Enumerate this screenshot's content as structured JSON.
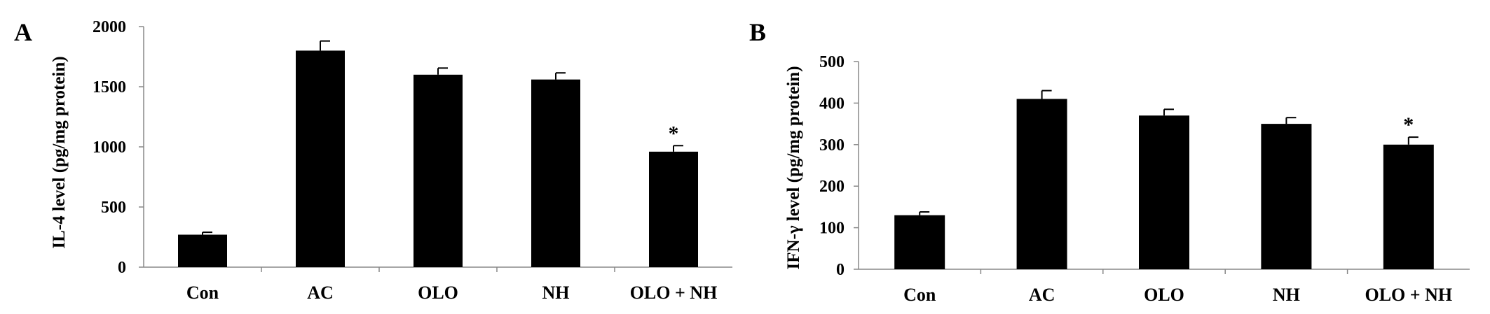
{
  "chart_data": [
    {
      "type": "bar",
      "panel": "A",
      "ylabel": "IL-4 level (pg/mg protein)",
      "xlabel": "",
      "categories": [
        "Con",
        "AC",
        "OLO",
        "NH",
        "OLO + NH"
      ],
      "values": [
        270,
        1800,
        1600,
        1560,
        960
      ],
      "errors": [
        20,
        80,
        55,
        55,
        50
      ],
      "annotations": [
        "",
        "",
        "",
        "",
        "*"
      ],
      "ylim": [
        0,
        2000
      ],
      "yticks": [
        0,
        500,
        1000,
        1500,
        2000
      ],
      "grid": false,
      "bar_color": "#000000"
    },
    {
      "type": "bar",
      "panel": "B",
      "ylabel": "IFN-γ level (pg/mg protein)",
      "xlabel": "",
      "categories": [
        "Con",
        "AC",
        "OLO",
        "NH",
        "OLO + NH"
      ],
      "values": [
        130,
        410,
        370,
        350,
        300
      ],
      "errors": [
        8,
        20,
        15,
        15,
        18
      ],
      "annotations": [
        "",
        "",
        "",
        "",
        "*"
      ],
      "ylim": [
        0,
        500
      ],
      "yticks": [
        0,
        100,
        200,
        300,
        400,
        500
      ],
      "grid": false,
      "bar_color": "#000000"
    }
  ]
}
